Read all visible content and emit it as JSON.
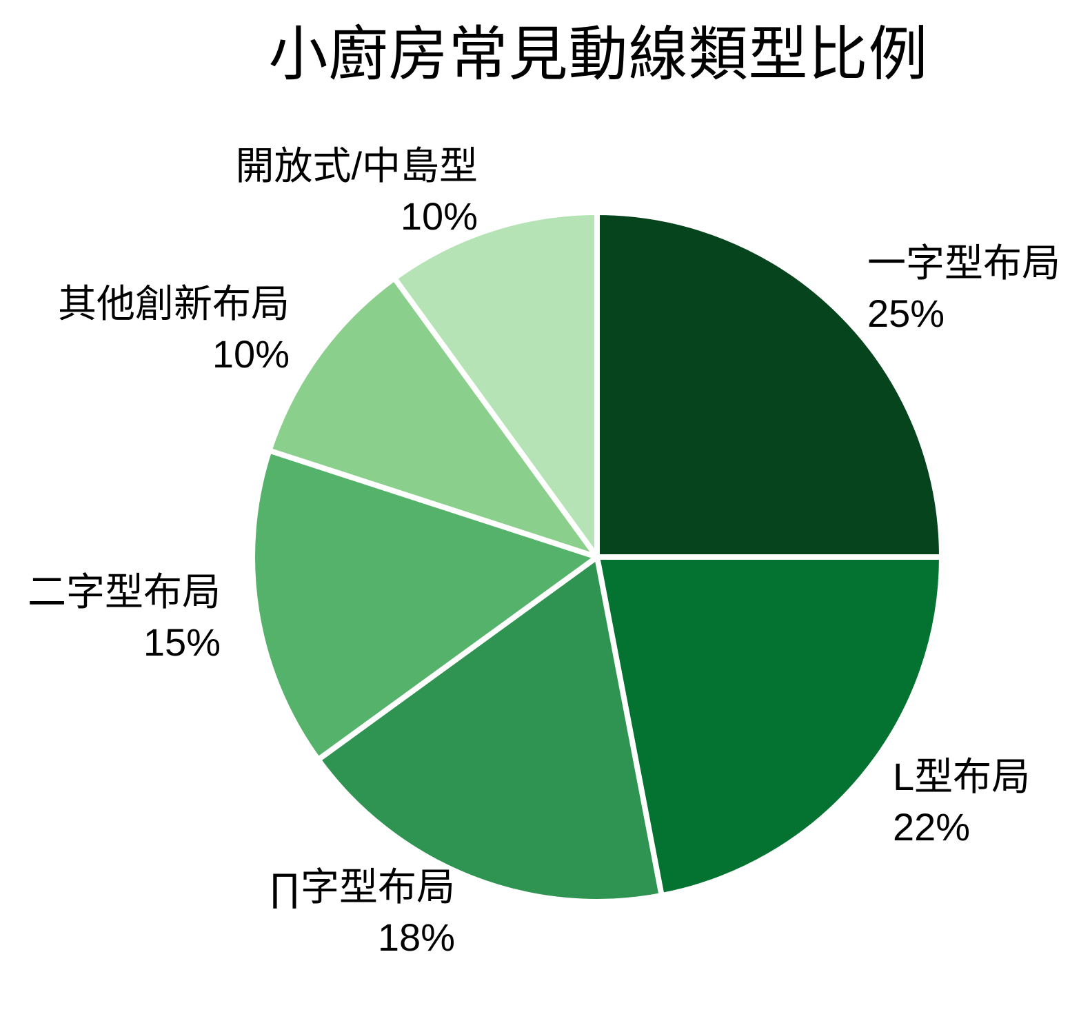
{
  "page": {
    "background_color": "#ffffff",
    "text_color": "#000000"
  },
  "chart_data": {
    "type": "pie",
    "title": "小廚房常見動線類型比例",
    "start_angle_deg": 0,
    "direction": "clockwise",
    "legend": "none",
    "separator_color": "#ffffff",
    "label_color": "#000000",
    "categories": [
      "一字型布局",
      "L型布局",
      "∏字型布局",
      "二字型布局",
      "其他創新布局",
      "開放式/中島型"
    ],
    "values": [
      25,
      22,
      18,
      15,
      10,
      10
    ],
    "slices": [
      {
        "label": "一字型布局",
        "value": 25,
        "pct_label": "25%",
        "color": "#05441c"
      },
      {
        "label": "L型布局",
        "value": 22,
        "pct_label": "22%",
        "color": "#047331"
      },
      {
        "label": "∏字型布局",
        "value": 18,
        "pct_label": "18%",
        "color": "#2f9351"
      },
      {
        "label": "二字型布局",
        "value": 15,
        "pct_label": "15%",
        "color": "#55b26b"
      },
      {
        "label": "其他創新布局",
        "value": 10,
        "pct_label": "10%",
        "color": "#8bcf8c"
      },
      {
        "label": "開放式/中島型",
        "value": 10,
        "pct_label": "10%",
        "color": "#b5e3b6"
      }
    ]
  }
}
